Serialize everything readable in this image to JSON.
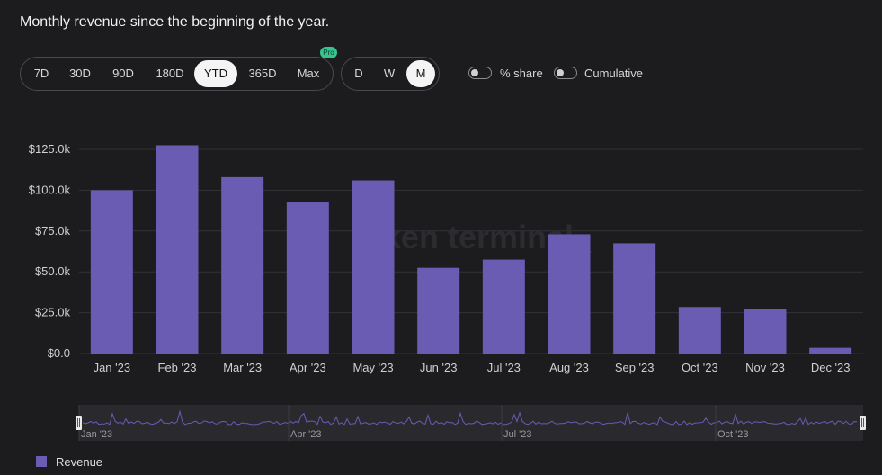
{
  "header": {
    "title": "Monthly revenue since the beginning of the year."
  },
  "range_options": [
    "7D",
    "30D",
    "90D",
    "180D",
    "YTD",
    "365D",
    "Max"
  ],
  "range_selected": "YTD",
  "pro_badge": "Pro",
  "granularity_options": [
    "D",
    "W",
    "M"
  ],
  "granularity_selected": "M",
  "toggles": {
    "share_label": "% share",
    "cumulative_label": "Cumulative"
  },
  "watermark": "token terminal_",
  "colors": {
    "bar": "#6a5bb3",
    "background": "#1c1b1d",
    "grid": "#333236"
  },
  "chart_data": {
    "type": "bar",
    "categories": [
      "Jan '23",
      "Feb '23",
      "Mar '23",
      "Apr '23",
      "May '23",
      "Jun '23",
      "Jul '23",
      "Aug '23",
      "Sep '23",
      "Oct '23",
      "Nov '23",
      "Dec '23"
    ],
    "series": [
      {
        "name": "Revenue",
        "values": [
          100000,
          127500,
          108000,
          92500,
          106000,
          52500,
          57500,
          73000,
          67500,
          28500,
          27000,
          3500
        ]
      }
    ],
    "y_ticks": [
      "$0.0",
      "$25.0k",
      "$50.0k",
      "$75.0k",
      "$100.0k",
      "$125.0k"
    ],
    "ylim": [
      0,
      125000
    ],
    "grid": true,
    "legend_position": "bottom-left"
  },
  "navigator": {
    "labels": [
      "Jan '23",
      "Apr '23",
      "Jul '23",
      "Oct '23"
    ]
  }
}
